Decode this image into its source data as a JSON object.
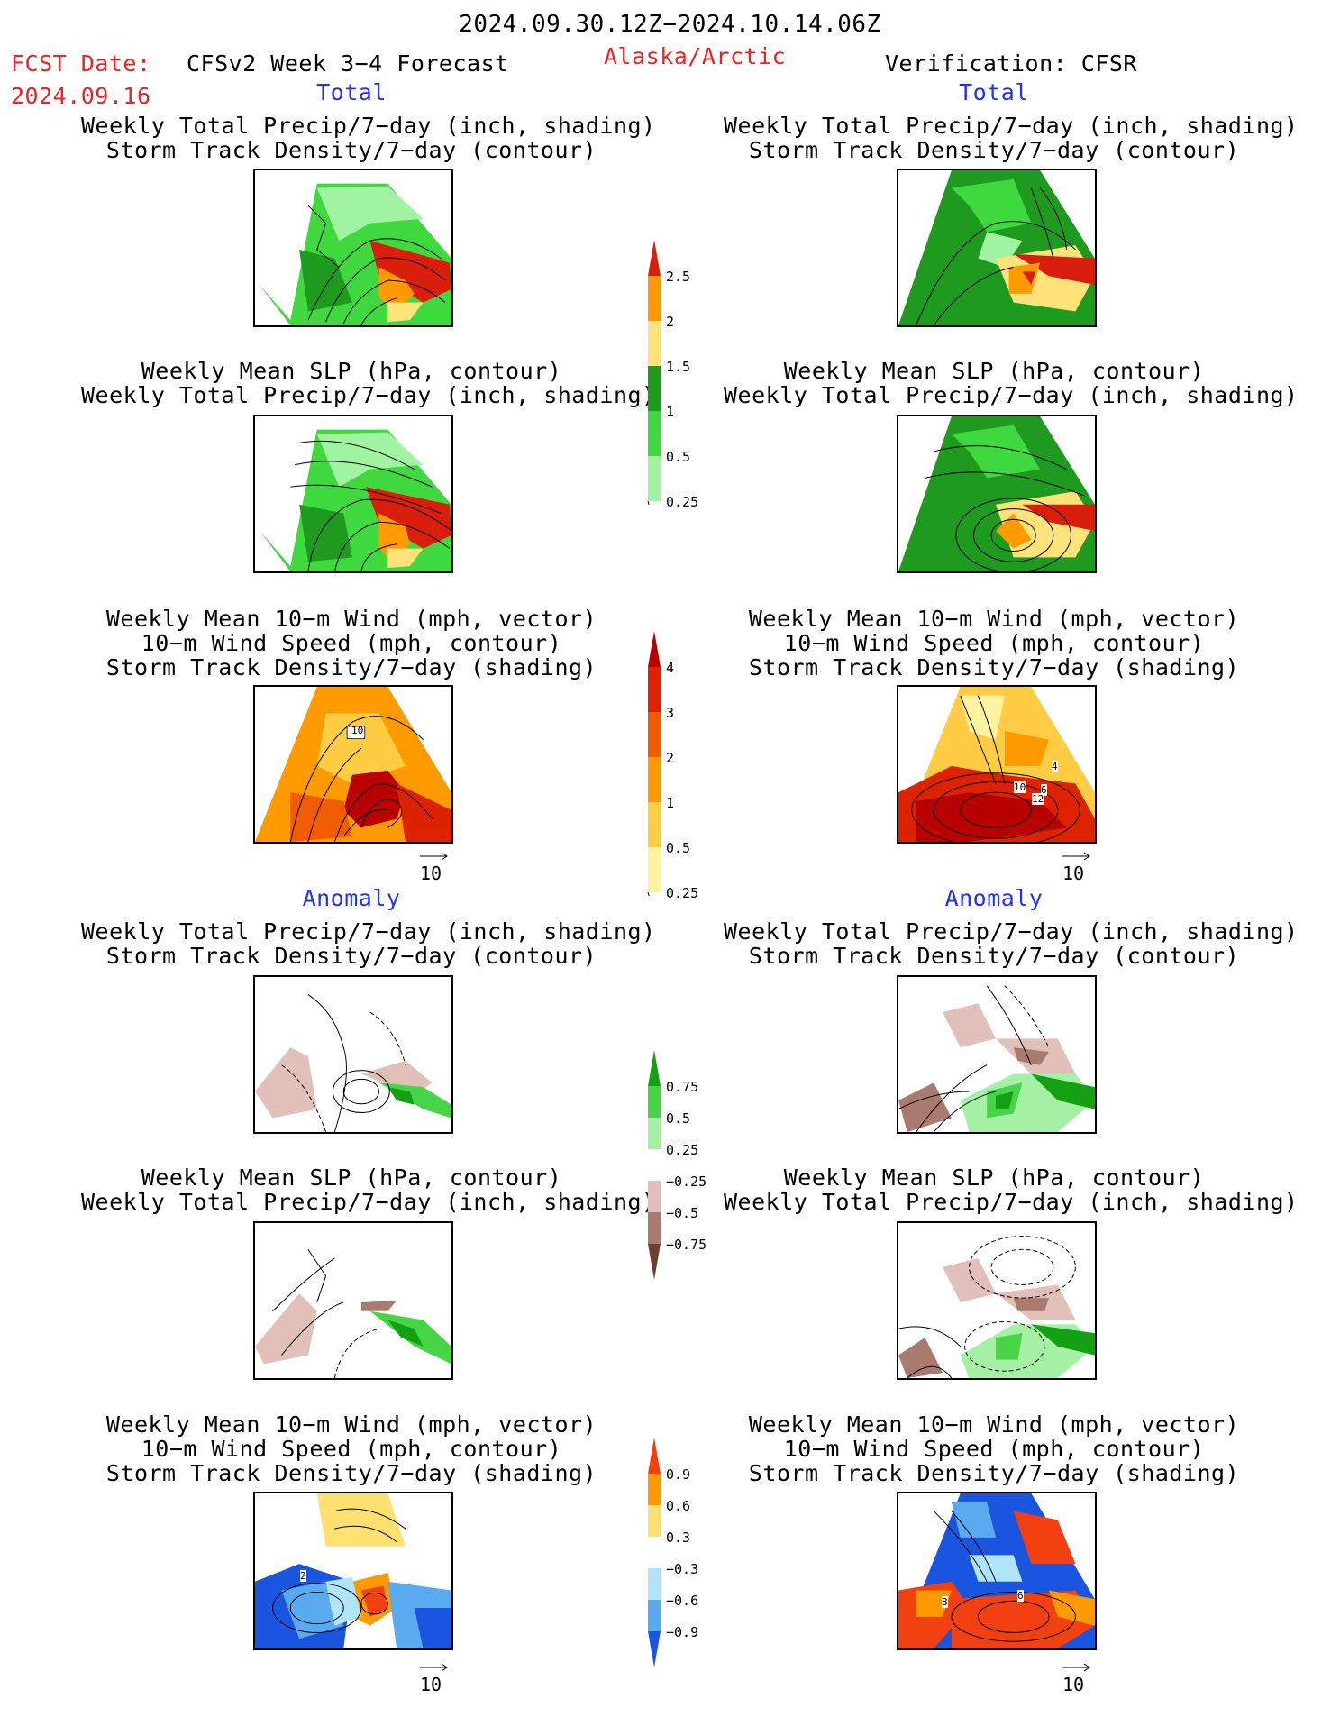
{
  "header": {
    "date_range": "2024.09.30.12Z−2024.10.14.06Z",
    "fcst_label": "FCST Date:",
    "fcst_date": "2024.09.16",
    "model": "CFSv2 Week 3−4 Forecast",
    "region": "Alaska/Arctic",
    "verification": "Verification: CFSR"
  },
  "sections": {
    "total_left": "Total",
    "total_right": "Total",
    "anomaly_left": "Anomaly",
    "anomaly_right": "Anomaly"
  },
  "panel_titles": {
    "precip_storm": [
      "Weekly Total Precip/7−day (inch, shading)",
      "Storm Track Density/7−day (contour)"
    ],
    "slp_precip": [
      "Weekly Mean SLP (hPa, contour)",
      "Weekly Total Precip/7−day (inch, shading)"
    ],
    "wind_storm": [
      "Weekly Mean 10−m Wind (mph, vector)",
      "10−m Wind Speed (mph, contour)",
      "Storm Track Density/7−day (shading)"
    ]
  },
  "colorbars": {
    "precip_total": {
      "labels": [
        "2.5",
        "2",
        "1.5",
        "1",
        "0.5",
        "0.25"
      ],
      "colors": [
        "#d91f0c",
        "#ff9a00",
        "#ffe27a",
        "#1e9a1e",
        "#3fd83f",
        "#a0f3a0"
      ]
    },
    "storm_total": {
      "labels": [
        "4",
        "3",
        "2",
        "1",
        "0.5",
        "0.25"
      ],
      "colors": [
        "#b80000",
        "#dd2200",
        "#f25c00",
        "#ff9a00",
        "#ffcc44",
        "#fff3a0"
      ]
    },
    "precip_anom": {
      "labels": [
        "0.75",
        "0.5",
        "0.25",
        "−0.25",
        "−0.5",
        "−0.75"
      ],
      "colors": [
        "#13a013",
        "#47d447",
        "#a4f0a4",
        "#ffffff",
        "#e0c0b8",
        "#a87a70",
        "#6a4030"
      ]
    },
    "storm_anom": {
      "labels": [
        "0.9",
        "0.6",
        "0.3",
        "−0.3",
        "−0.6",
        "−0.9"
      ],
      "colors": [
        "#f24010",
        "#ff9a00",
        "#ffe070",
        "#ffffff",
        "#b0e4f8",
        "#5aaaf0",
        "#1a55e0"
      ]
    }
  },
  "vector_ref": "10",
  "map_labels": {
    "wind_total_left": "10",
    "wind_total_right": [
      "4",
      "10",
      "6",
      "12"
    ],
    "wind_anom_left": "2",
    "wind_anom_right": [
      "8",
      "6"
    ]
  }
}
